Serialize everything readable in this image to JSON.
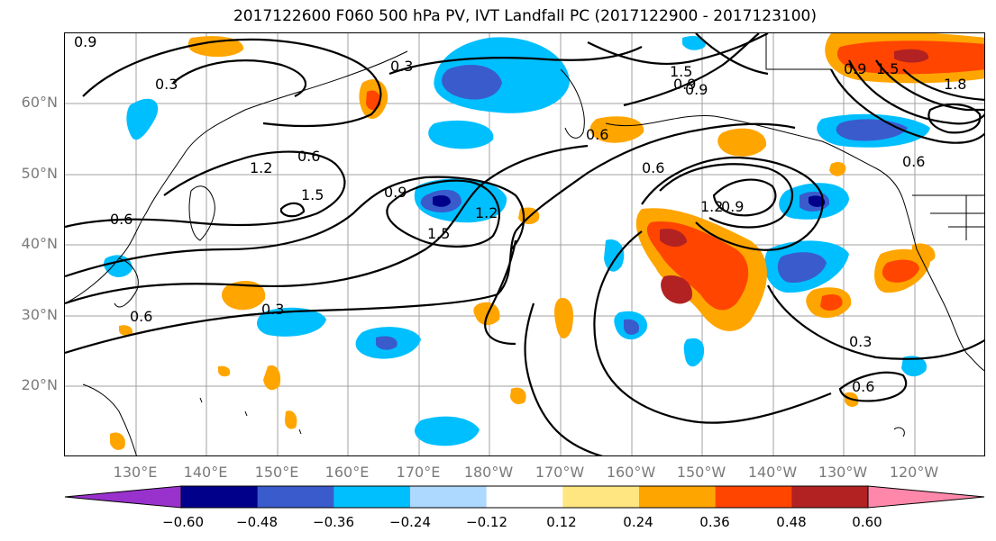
{
  "title": "2017122600 F060 500 hPa PV, IVT Landfall PC (2017122900 - 2017123100)",
  "map": {
    "lat_labels": [
      "60°N",
      "50°N",
      "40°N",
      "30°N",
      "20°N"
    ],
    "lon_labels": [
      "130°E",
      "140°E",
      "150°E",
      "160°E",
      "170°E",
      "180°W",
      "170°W",
      "160°W",
      "150°W",
      "140°W",
      "130°W",
      "120°W"
    ],
    "contour_labels": [
      "0.3",
      "0.3",
      "0.6",
      "0.9",
      "1.2",
      "1.5",
      "0.9",
      "1.5",
      "1.2",
      "0.6",
      "0.9",
      "1.2",
      "0.9",
      "1.5",
      "0.3",
      "0.6",
      "0.3",
      "0.6",
      "1.8",
      "0.9",
      "1.5",
      "0.6",
      "0.9",
      "0.6",
      "0.6"
    ],
    "grid": true
  },
  "colorbar": {
    "ticks": [
      "−0.60",
      "−0.48",
      "−0.36",
      "−0.24",
      "−0.12",
      "0.12",
      "0.24",
      "0.36",
      "0.48",
      "0.60"
    ],
    "colors": [
      "#9932CC",
      "#00008B",
      "#3A5BCC",
      "#00BFFF",
      "#ADD8FF",
      "#FFFFFF",
      "#FFE680",
      "#FFA500",
      "#FF4500",
      "#B22222",
      "#FF88AA"
    ]
  }
}
